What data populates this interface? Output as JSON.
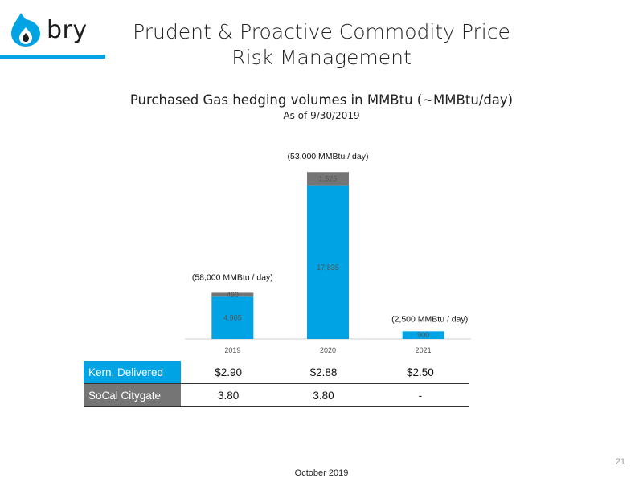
{
  "logo": {
    "text": "bry",
    "brand_color": "#00a4e4"
  },
  "title": "Prudent & Proactive Commodity Price Risk Management",
  "title_lines": [
    "Prudent & Proactive Commodity Price",
    "Risk Management"
  ],
  "subtitle": "Purchased Gas hedging volumes in MMBtu (~MMBtu/day)",
  "as_of": "As of 9/30/2019",
  "chart_data": {
    "type": "bar",
    "stacked": true,
    "categories": [
      "2019",
      "2020",
      "2021"
    ],
    "series": [
      {
        "name": "Kern, Delivered",
        "color": "#00a4e4",
        "values": [
          4905,
          17835,
          900
        ],
        "labels": [
          "4,905",
          "17,835",
          "900"
        ]
      },
      {
        "name": "SoCal Citygate",
        "color": "#757575",
        "values": [
          460,
          1525,
          0
        ],
        "labels": [
          "460",
          "1,525",
          ""
        ]
      }
    ],
    "annotations": [
      "(58,000 MMBtu  / day)",
      "(53,000 MMBtu / day)",
      "(2,500 MMBtu / day)"
    ],
    "ylim": [
      0,
      20500
    ],
    "grid": false,
    "legend": "table-below"
  },
  "table": {
    "rows": [
      {
        "label": "Kern, Delivered",
        "values": [
          "$2.90",
          "$2.88",
          "$2.50"
        ]
      },
      {
        "label": "SoCal Citygate",
        "values": [
          "3.80",
          "3.80",
          "-"
        ]
      }
    ]
  },
  "footer": "October 2019",
  "page_number": "21"
}
